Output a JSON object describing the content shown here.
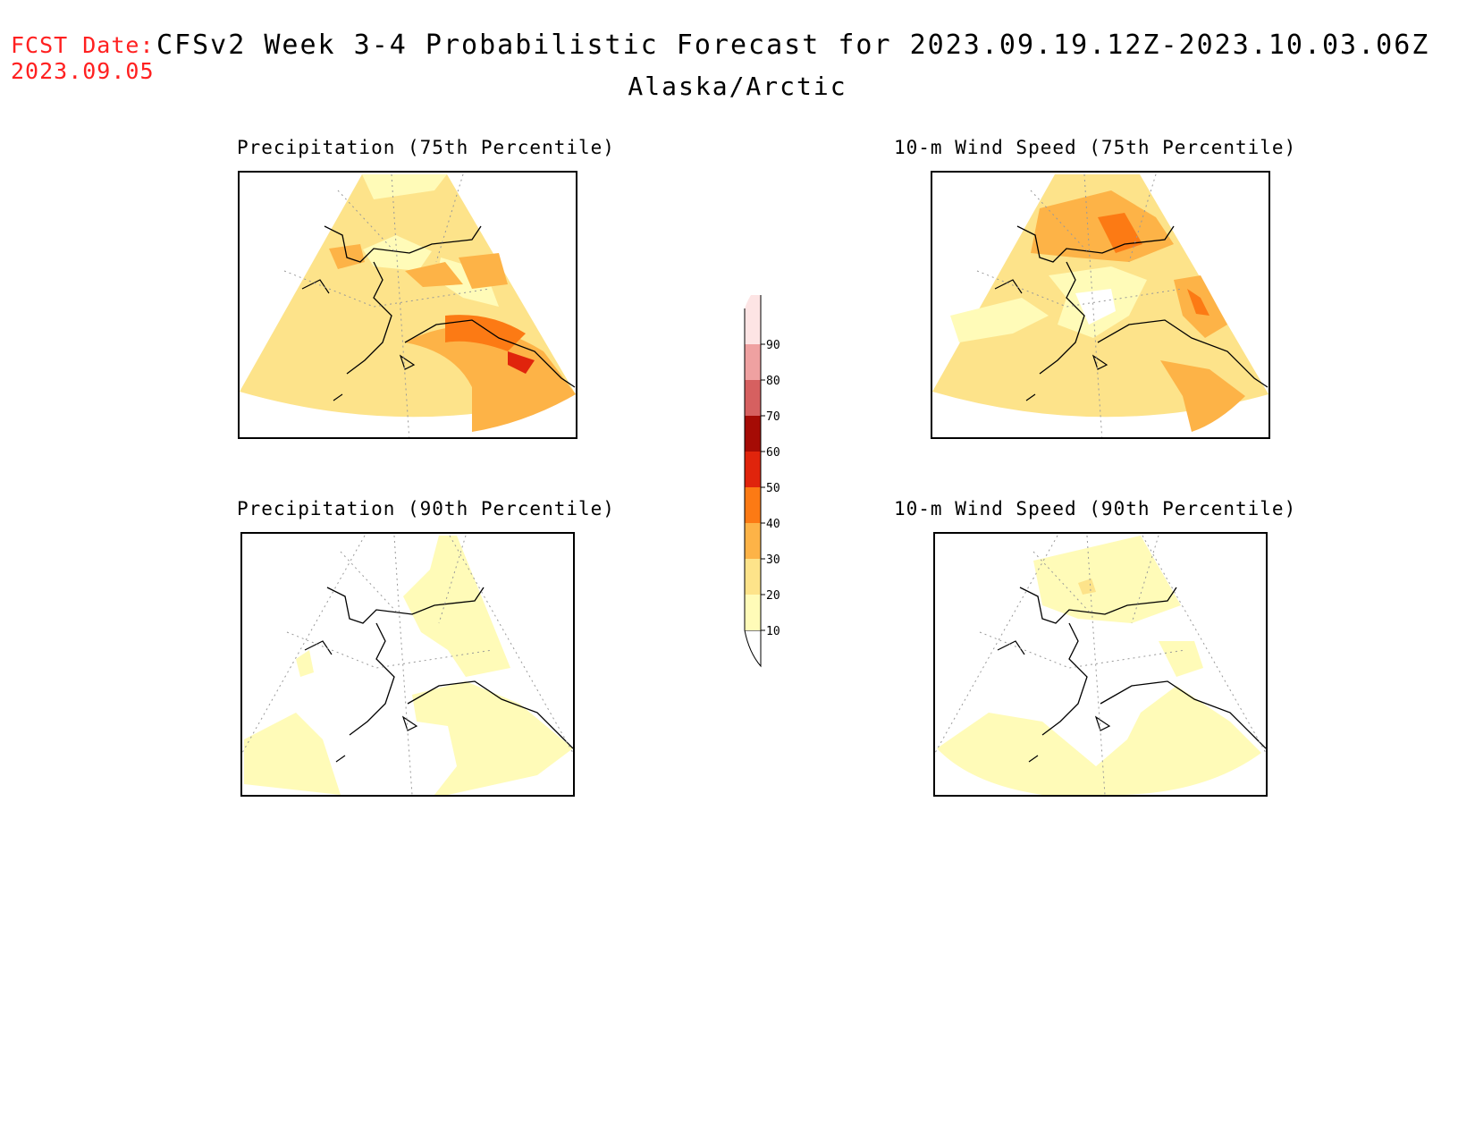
{
  "header": {
    "fcst_label": "FCST Date:",
    "fcst_date": "2023.09.05",
    "title": "CFSv2 Week 3-4 Probabilistic Forecast for 2023.09.19.12Z-2023.10.03.06Z",
    "subtitle": "Alaska/Arctic"
  },
  "panels": [
    {
      "title": "Precipitation (75th Percentile)"
    },
    {
      "title": "10-m Wind Speed (75th Percentile)"
    },
    {
      "title": "Precipitation (90th Percentile)"
    },
    {
      "title": "10-m Wind Speed (90th Percentile)"
    }
  ],
  "colorbar": {
    "levels": [
      "10",
      "20",
      "30",
      "40",
      "50",
      "60",
      "70",
      "80",
      "90"
    ],
    "colors": [
      "#fffbb8",
      "#fde38a",
      "#fdb347",
      "#fc7a14",
      "#e0240c",
      "#a50b05",
      "#d66060",
      "#efa1a1",
      "#fde4e4"
    ]
  }
}
